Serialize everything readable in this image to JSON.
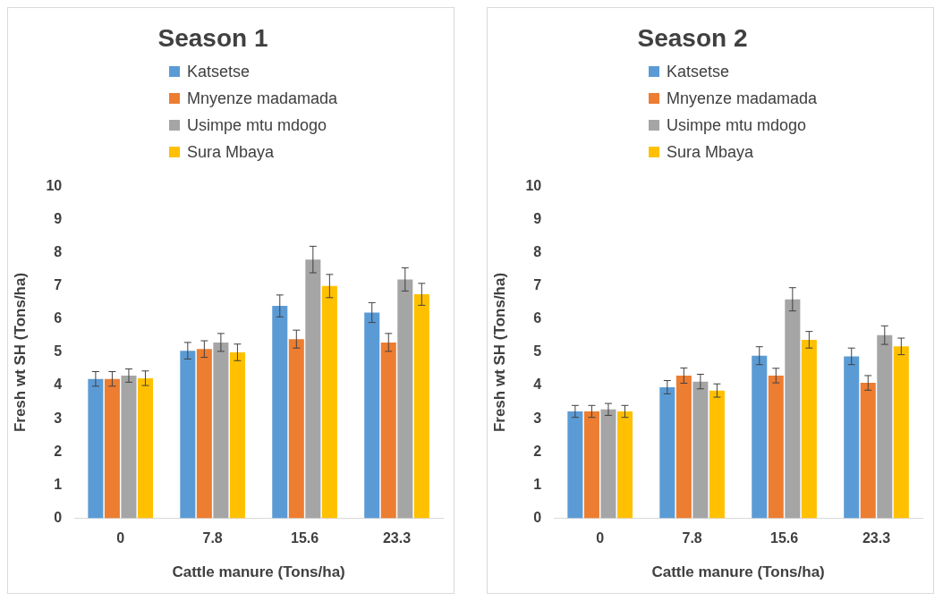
{
  "chart_data": [
    {
      "type": "bar",
      "title": "Season 1",
      "xlabel": "Cattle manure (Tons/ha)",
      "ylabel": "Fresh wt SH (Tons/ha)",
      "categories": [
        "0",
        "7.8",
        "15.6",
        "23.3"
      ],
      "ylim": [
        0,
        10
      ],
      "yticks": [
        0,
        1,
        2,
        3,
        4,
        5,
        6,
        7,
        8,
        9,
        10
      ],
      "grid": false,
      "legend": "top",
      "series": [
        {
          "name": "Katsetse",
          "color": "#5b9bd5",
          "values": [
            4.2,
            5.05,
            6.4,
            6.2
          ],
          "errors": [
            0.22,
            0.25,
            0.33,
            0.3
          ]
        },
        {
          "name": "Mnyenze madamada",
          "color": "#ed7d31",
          "values": [
            4.2,
            5.1,
            5.4,
            5.3
          ],
          "errors": [
            0.22,
            0.25,
            0.27,
            0.27
          ]
        },
        {
          "name": "Usimpe mtu mdogo",
          "color": "#a5a5a5",
          "values": [
            4.3,
            5.3,
            7.8,
            7.2
          ],
          "errors": [
            0.2,
            0.27,
            0.4,
            0.35
          ]
        },
        {
          "name": "Sura Mbaya",
          "color": "#ffc000",
          "values": [
            4.22,
            5.0,
            7.0,
            6.75
          ],
          "errors": [
            0.22,
            0.25,
            0.35,
            0.33
          ]
        }
      ]
    },
    {
      "type": "bar",
      "title": "Season 2",
      "xlabel": "Cattle manure (Tons/ha)",
      "ylabel": "Fresh wt SH (Tons/ha)",
      "categories": [
        "0",
        "7.8",
        "15.6",
        "23.3"
      ],
      "ylim": [
        0,
        10
      ],
      "yticks": [
        0,
        1,
        2,
        3,
        4,
        5,
        6,
        7,
        8,
        9,
        10
      ],
      "grid": false,
      "legend": "top",
      "series": [
        {
          "name": "Katsetse",
          "color": "#5b9bd5",
          "values": [
            3.22,
            3.95,
            4.9,
            4.88
          ],
          "errors": [
            0.18,
            0.2,
            0.27,
            0.25
          ]
        },
        {
          "name": "Mnyenze madamada",
          "color": "#ed7d31",
          "values": [
            3.22,
            4.3,
            4.3,
            4.08
          ],
          "errors": [
            0.18,
            0.23,
            0.22,
            0.22
          ]
        },
        {
          "name": "Usimpe mtu mdogo",
          "color": "#a5a5a5",
          "values": [
            3.28,
            4.12,
            6.6,
            5.52
          ],
          "errors": [
            0.18,
            0.22,
            0.35,
            0.28
          ]
        },
        {
          "name": "Sura Mbaya",
          "color": "#ffc000",
          "values": [
            3.22,
            3.85,
            5.38,
            5.18
          ],
          "errors": [
            0.18,
            0.2,
            0.25,
            0.25
          ]
        }
      ]
    }
  ]
}
